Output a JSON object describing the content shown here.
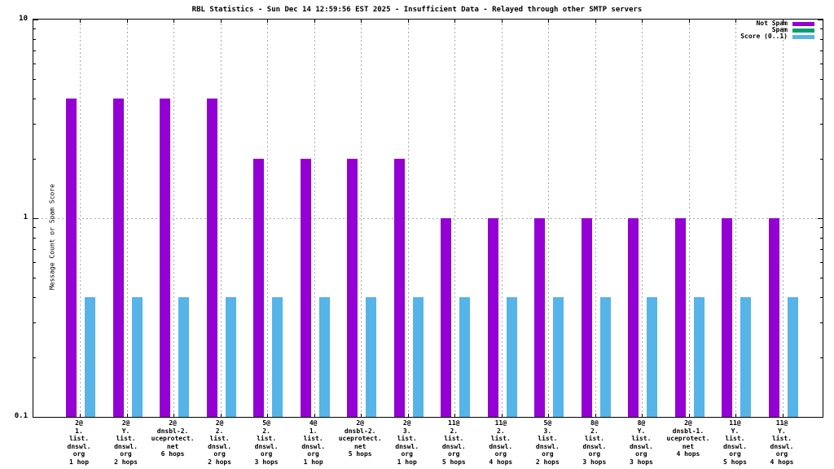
{
  "chart_data": {
    "type": "bar",
    "title": "RBL Statistics - Sun Dec 14 12:59:56 EST 2025 - Insufficient Data - Relayed through other SMTP servers",
    "ylabel": "Message Count or Spam Score",
    "y_scale": "log",
    "ylim": [
      0.1,
      10
    ],
    "y_major_ticks": [
      0.1,
      1,
      10
    ],
    "y_major_tick_labels": [
      "0.1",
      "1",
      "10"
    ],
    "y_minor_ticks": [
      0.2,
      0.3,
      0.4,
      0.5,
      0.6,
      0.7,
      0.8,
      0.9,
      2,
      3,
      4,
      5,
      6,
      7,
      8,
      9
    ],
    "grid": true,
    "legend_position": "top-right",
    "categories": [
      "2@\n1.\nlist.\ndnswl.\norg\n1 hop",
      "2@\nY.\nlist.\ndnswl.\norg\n2 hops",
      "2@\ndnsbl-2.\nuceprotect.\nnet\n6 hops",
      "2@\n2.\nlist.\ndnswl.\norg\n2 hops",
      "5@\n2.\nlist.\ndnswl.\norg\n3 hops",
      "4@\n1.\nlist.\ndnswl.\norg\n1 hop",
      "2@\ndnsbl-2.\nuceprotect.\nnet\n5 hops",
      "2@\n3.\nlist.\ndnswl.\norg\n1 hop",
      "11@\n2.\nlist.\ndnswl.\norg\n5 hops",
      "11@\n2.\nlist.\ndnswl.\norg\n4 hops",
      "5@\n3.\nlist.\ndnswl.\norg\n2 hops",
      "8@\n2.\nlist.\ndnswl.\norg\n3 hops",
      "8@\nY.\nlist.\ndnswl.\norg\n3 hops",
      "2@\ndnsbl-1.\nuceprotect.\nnet\n4 hops",
      "11@\nY.\nlist.\ndnswl.\norg\n5 hops",
      "11@\nY.\nlist.\ndnswl.\norg\n4 hops"
    ],
    "series": [
      {
        "name": "Not Spam",
        "color": "#9400d3",
        "values": [
          4,
          4,
          4,
          4,
          2,
          2,
          2,
          2,
          1,
          1,
          1,
          1,
          1,
          1,
          1,
          1
        ]
      },
      {
        "name": "Spam",
        "color": "#009e73",
        "values": [
          0,
          0,
          0,
          0,
          0,
          0,
          0,
          0,
          0,
          0,
          0,
          0,
          0,
          0,
          0,
          0
        ]
      },
      {
        "name": "Score (0..1)",
        "color": "#56b4e9",
        "values": [
          0.4,
          0.4,
          0.4,
          0.4,
          0.4,
          0.4,
          0.4,
          0.4,
          0.4,
          0.4,
          0.4,
          0.4,
          0.4,
          0.4,
          0.4,
          0.4
        ]
      }
    ]
  }
}
